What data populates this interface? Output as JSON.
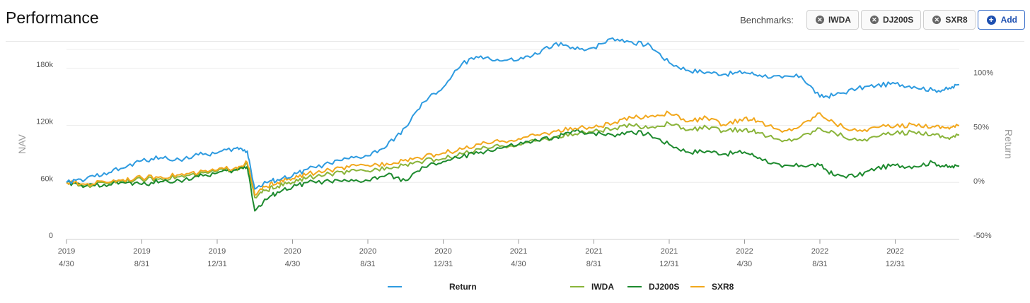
{
  "header": {
    "title": "Performance",
    "benchmarks_label": "Benchmarks:",
    "chips": [
      {
        "label": "IWDA"
      },
      {
        "label": "DJ200S"
      },
      {
        "label": "SXR8"
      }
    ],
    "add_label": "Add"
  },
  "chart_data": {
    "type": "line",
    "ylabel": "NAV",
    "y2label": "Return",
    "ylim": [
      0,
      200000
    ],
    "y2lim": [
      -50,
      125
    ],
    "y_ticks": [
      {
        "value": 0,
        "label": "0"
      },
      {
        "value": 60000,
        "label": "60k"
      },
      {
        "value": 120000,
        "label": "120k"
      },
      {
        "value": 180000,
        "label": "180k"
      }
    ],
    "y2_ticks": [
      {
        "value": -50,
        "label": "-50%"
      },
      {
        "value": 0,
        "label": "0%"
      },
      {
        "value": 50,
        "label": "50%"
      },
      {
        "value": 100,
        "label": "100%"
      }
    ],
    "x_ticks": [
      {
        "t": 0,
        "year": "2019",
        "md": "4/30"
      },
      {
        "t": 1,
        "year": "2019",
        "md": "8/31"
      },
      {
        "t": 2,
        "year": "2019",
        "md": "12/31"
      },
      {
        "t": 3,
        "year": "2020",
        "md": "4/30"
      },
      {
        "t": 4,
        "year": "2020",
        "md": "8/31"
      },
      {
        "t": 5,
        "year": "2020",
        "md": "12/31"
      },
      {
        "t": 6,
        "year": "2021",
        "md": "4/30"
      },
      {
        "t": 7,
        "year": "2021",
        "md": "8/31"
      },
      {
        "t": 8,
        "year": "2021",
        "md": "12/31"
      },
      {
        "t": 9,
        "year": "2022",
        "md": "4/30"
      },
      {
        "t": 10,
        "year": "2022",
        "md": "8/31"
      },
      {
        "t": 11,
        "year": "2022",
        "md": "12/31"
      }
    ],
    "x_max": 11.85,
    "grid": true,
    "legend_position": "bottom",
    "series": [
      {
        "name": "Return",
        "color": "#2e9be0",
        "x": [
          0,
          0.25,
          0.5,
          0.75,
          1,
          1.25,
          1.5,
          1.75,
          2,
          2.25,
          2.4,
          2.5,
          2.65,
          2.8,
          3,
          3.2,
          3.5,
          3.75,
          4,
          4.25,
          4.5,
          4.75,
          5,
          5.25,
          5.5,
          5.75,
          6,
          6.25,
          6.5,
          6.75,
          7,
          7.25,
          7.5,
          7.75,
          8,
          8.25,
          8.5,
          8.75,
          9,
          9.2,
          9.5,
          9.75,
          10,
          10.2,
          10.5,
          10.75,
          11,
          11.25,
          11.5,
          11.7,
          11.85
        ],
        "y": [
          60000,
          63000,
          70000,
          75000,
          83000,
          86000,
          84000,
          89000,
          91000,
          96000,
          93000,
          53000,
          60000,
          63000,
          67000,
          74000,
          80000,
          85000,
          88000,
          98000,
          118000,
          145000,
          160000,
          185000,
          193000,
          188000,
          189000,
          195000,
          207000,
          200000,
          202000,
          212000,
          208000,
          204000,
          186000,
          178000,
          176000,
          174000,
          176000,
          173000,
          170000,
          172000,
          150000,
          152000,
          159000,
          162000,
          164000,
          161000,
          157000,
          158000,
          163000
        ]
      },
      {
        "name": "IWDA",
        "color": "#8ab43a",
        "x": [
          0,
          0.25,
          0.5,
          0.75,
          1,
          1.25,
          1.5,
          1.75,
          2,
          2.25,
          2.4,
          2.5,
          2.65,
          2.8,
          3,
          3.2,
          3.5,
          3.75,
          4,
          4.25,
          4.5,
          4.75,
          5,
          5.25,
          5.5,
          5.75,
          6,
          6.25,
          6.5,
          6.75,
          7,
          7.25,
          7.5,
          7.75,
          8,
          8.25,
          8.5,
          8.75,
          9,
          9.2,
          9.5,
          9.75,
          10,
          10.2,
          10.5,
          10.75,
          11,
          11.25,
          11.5,
          11.7,
          11.85
        ],
        "y": [
          60000,
          56000,
          60000,
          62000,
          63000,
          64000,
          66000,
          68000,
          72000,
          74000,
          79000,
          44000,
          52000,
          56000,
          60000,
          65000,
          69000,
          71000,
          72000,
          76000,
          79000,
          83000,
          85000,
          90000,
          95000,
          98000,
          100000,
          104000,
          108000,
          111000,
          114000,
          116000,
          120000,
          118000,
          122000,
          115000,
          118000,
          114000,
          116000,
          112000,
          103000,
          108000,
          117000,
          112000,
          104000,
          108000,
          112000,
          113000,
          111000,
          107000,
          110000
        ]
      },
      {
        "name": "DJ200S",
        "color": "#1d8a2e",
        "x": [
          0,
          0.25,
          0.5,
          0.75,
          1,
          1.25,
          1.5,
          1.75,
          2,
          2.25,
          2.4,
          2.5,
          2.65,
          2.8,
          3,
          3.2,
          3.5,
          3.75,
          4,
          4.25,
          4.5,
          4.75,
          5,
          5.25,
          5.5,
          5.75,
          6,
          6.25,
          6.5,
          6.75,
          7,
          7.25,
          7.5,
          7.75,
          8,
          8.25,
          8.5,
          8.75,
          9,
          9.2,
          9.5,
          9.75,
          10,
          10.2,
          10.5,
          10.75,
          11,
          11.25,
          11.5,
          11.7,
          11.85
        ],
        "y": [
          60000,
          56000,
          58000,
          60000,
          58000,
          61000,
          62000,
          66000,
          70000,
          73000,
          77000,
          30000,
          42000,
          50000,
          55000,
          60000,
          61000,
          61000,
          62000,
          68000,
          62000,
          76000,
          82000,
          87000,
          92000,
          96000,
          100000,
          104000,
          108000,
          114000,
          112000,
          110000,
          114000,
          110000,
          100000,
          92000,
          93000,
          90000,
          92000,
          86000,
          76000,
          78000,
          78000,
          67000,
          67000,
          75000,
          78000,
          77000,
          81000,
          76000,
          77000
        ]
      },
      {
        "name": "SXR8",
        "color": "#f2a81d",
        "x": [
          0,
          0.25,
          0.5,
          0.75,
          1,
          1.25,
          1.5,
          1.75,
          2,
          2.25,
          2.4,
          2.5,
          2.65,
          2.8,
          3,
          3.2,
          3.5,
          3.75,
          4,
          4.25,
          4.5,
          4.75,
          5,
          5.25,
          5.5,
          5.75,
          6,
          6.25,
          6.5,
          6.75,
          7,
          7.25,
          7.5,
          7.75,
          8,
          8.25,
          8.5,
          8.75,
          9,
          9.2,
          9.5,
          9.75,
          10,
          10.2,
          10.5,
          10.75,
          11,
          11.25,
          11.5,
          11.7,
          11.85
        ],
        "y": [
          60000,
          58000,
          61000,
          63000,
          65000,
          66000,
          68000,
          70000,
          73000,
          76000,
          81000,
          47000,
          56000,
          60000,
          64000,
          69000,
          73000,
          76000,
          78000,
          80000,
          84000,
          87000,
          91000,
          95000,
          100000,
          103000,
          106000,
          110000,
          114000,
          117000,
          118000,
          122000,
          128000,
          130000,
          133000,
          124000,
          128000,
          120000,
          128000,
          124000,
          113000,
          120000,
          133000,
          122000,
          114000,
          118000,
          119000,
          121000,
          119000,
          118000,
          120000
        ]
      }
    ]
  }
}
